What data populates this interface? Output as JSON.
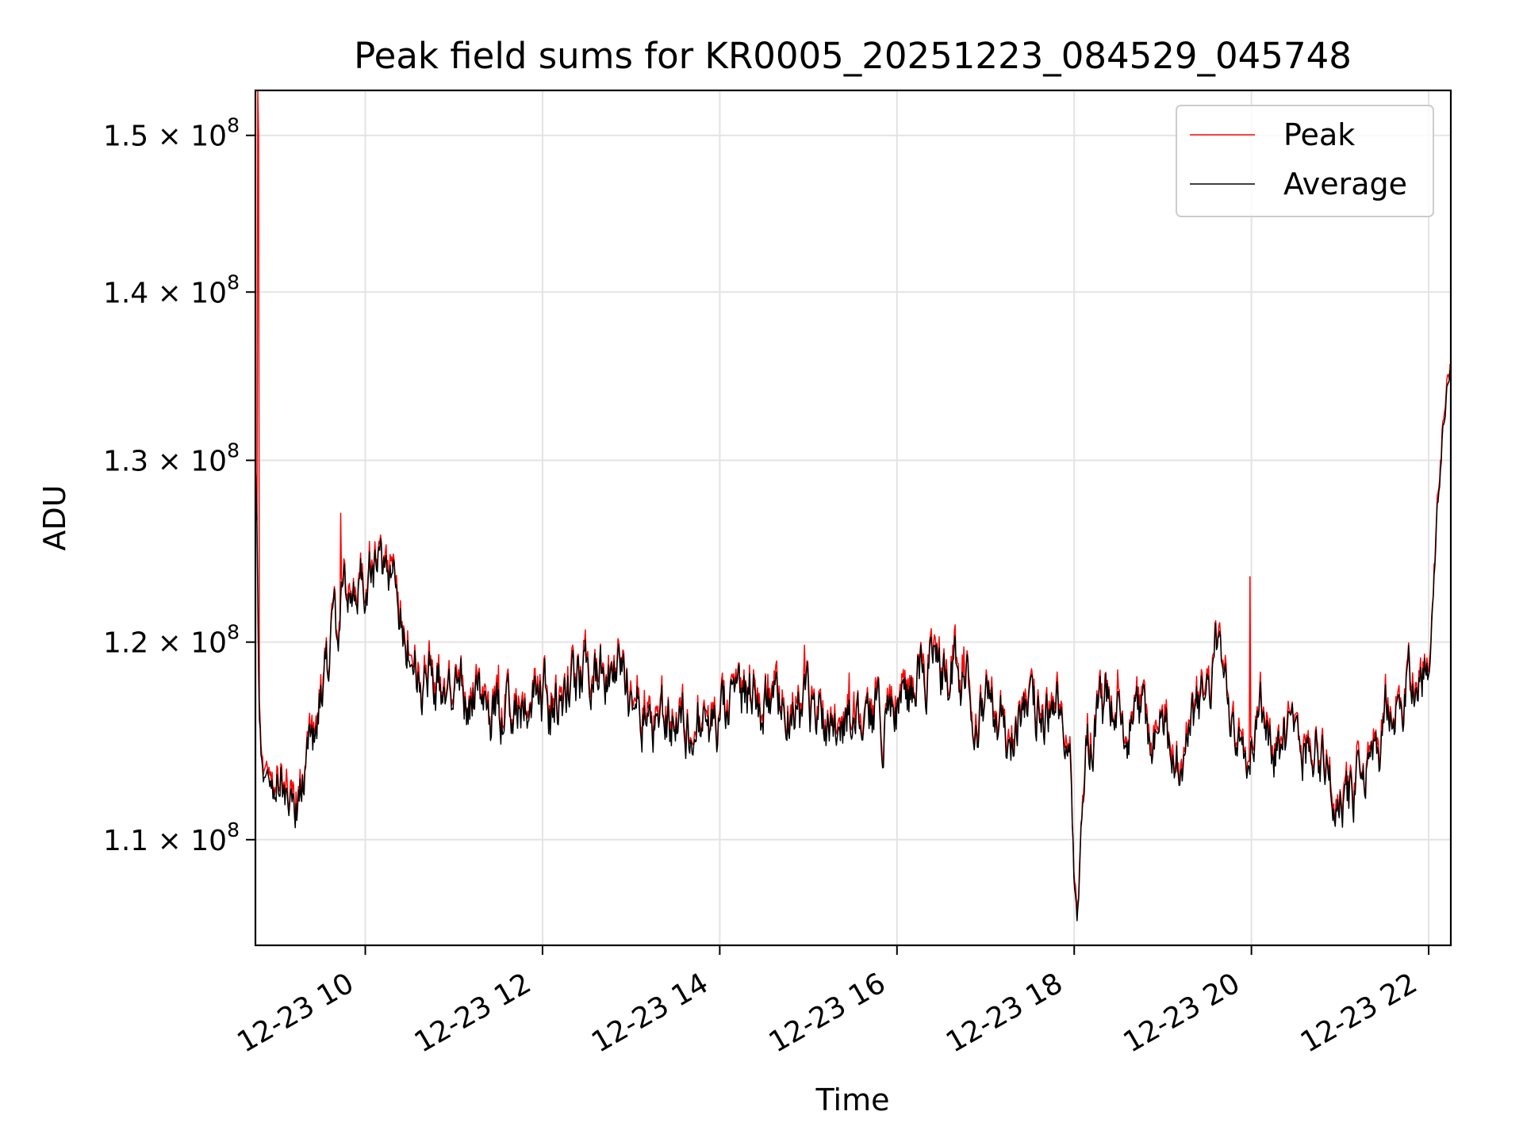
{
  "chart_data": {
    "type": "line",
    "title": "Peak field sums for KR0005_20251223_084529_045748",
    "xlabel": "Time",
    "ylabel": "ADU",
    "y_scale": "log",
    "grid": true,
    "legend_position": "top-right",
    "x_range_hours": [
      8.76,
      22.25
    ],
    "y_range": [
      105000000,
      153000000
    ],
    "x_ticks": [
      {
        "hour": 10,
        "label": "12-23 10"
      },
      {
        "hour": 12,
        "label": "12-23 12"
      },
      {
        "hour": 14,
        "label": "12-23 14"
      },
      {
        "hour": 16,
        "label": "12-23 16"
      },
      {
        "hour": 18,
        "label": "12-23 18"
      },
      {
        "hour": 20,
        "label": "12-23 20"
      },
      {
        "hour": 22,
        "label": "12-23 22"
      }
    ],
    "y_ticks": [
      {
        "value": 110000000,
        "mantissa": "1.1",
        "base": "10",
        "exponent": "8"
      },
      {
        "value": 120000000,
        "mantissa": "1.2",
        "base": "10",
        "exponent": "8"
      },
      {
        "value": 130000000,
        "mantissa": "1.3",
        "base": "10",
        "exponent": "8"
      },
      {
        "value": 140000000,
        "mantissa": "1.4",
        "base": "10",
        "exponent": "8"
      },
      {
        "value": 150000000,
        "mantissa": "1.5",
        "base": "10",
        "exponent": "8"
      }
    ],
    "series": [
      {
        "name": "Peak",
        "color": "#ff0000"
      },
      {
        "name": "Average",
        "color": "#000000"
      }
    ],
    "anchors_hours": [
      8.76,
      8.78,
      8.8,
      8.83,
      8.87,
      8.92,
      9.0,
      9.1,
      9.2,
      9.3,
      9.4,
      9.5,
      9.6,
      9.7,
      9.72,
      9.75,
      9.85,
      9.95,
      10.05,
      10.15,
      10.25,
      10.35,
      10.45,
      10.55,
      10.65,
      10.75,
      10.9,
      11.1,
      11.3,
      11.5,
      11.7,
      11.9,
      12.1,
      12.3,
      12.5,
      12.7,
      12.9,
      13.1,
      13.3,
      13.5,
      13.7,
      13.9,
      14.1,
      14.3,
      14.5,
      14.7,
      14.9,
      15.1,
      15.3,
      15.5,
      15.7,
      15.9,
      16.1,
      16.3,
      16.5,
      16.7,
      16.9,
      17.1,
      17.3,
      17.5,
      17.7,
      17.85,
      17.95,
      18.0,
      18.03,
      18.08,
      18.15,
      18.3,
      18.5,
      18.7,
      18.9,
      19.1,
      19.3,
      19.5,
      19.6,
      19.7,
      19.9,
      20.0,
      20.1,
      20.3,
      20.5,
      20.7,
      20.9,
      21.1,
      21.3,
      21.5,
      21.7,
      21.9,
      22.0,
      22.05,
      22.1,
      22.15,
      22.2,
      22.25
    ],
    "anchors_avg_millions": [
      130.0,
      126.0,
      117.0,
      114.0,
      113.0,
      112.5,
      114.0,
      113.0,
      112.5,
      113.5,
      114.5,
      117.0,
      119.0,
      120.5,
      122.0,
      122.0,
      122.5,
      123.0,
      123.5,
      123.5,
      123.0,
      122.5,
      121.0,
      118.5,
      118.0,
      118.0,
      118.0,
      117.5,
      117.0,
      116.0,
      117.0,
      117.5,
      116.0,
      117.5,
      118.5,
      118.0,
      118.0,
      117.0,
      116.5,
      116.0,
      115.5,
      115.5,
      116.0,
      117.5,
      117.0,
      116.0,
      116.0,
      116.5,
      116.0,
      116.0,
      116.5,
      116.0,
      117.0,
      118.5,
      118.5,
      118.5,
      117.0,
      116.0,
      115.5,
      116.0,
      116.0,
      115.5,
      114.5,
      108.0,
      105.5,
      111.0,
      115.0,
      116.5,
      116.0,
      116.0,
      115.5,
      114.5,
      115.0,
      117.0,
      119.5,
      117.5,
      115.5,
      115.5,
      117.0,
      114.5,
      114.5,
      115.5,
      112.5,
      112.0,
      113.0,
      115.5,
      117.5,
      118.5,
      119.5,
      122.0,
      127.0,
      131.0,
      134.0,
      135.5
    ]
  }
}
